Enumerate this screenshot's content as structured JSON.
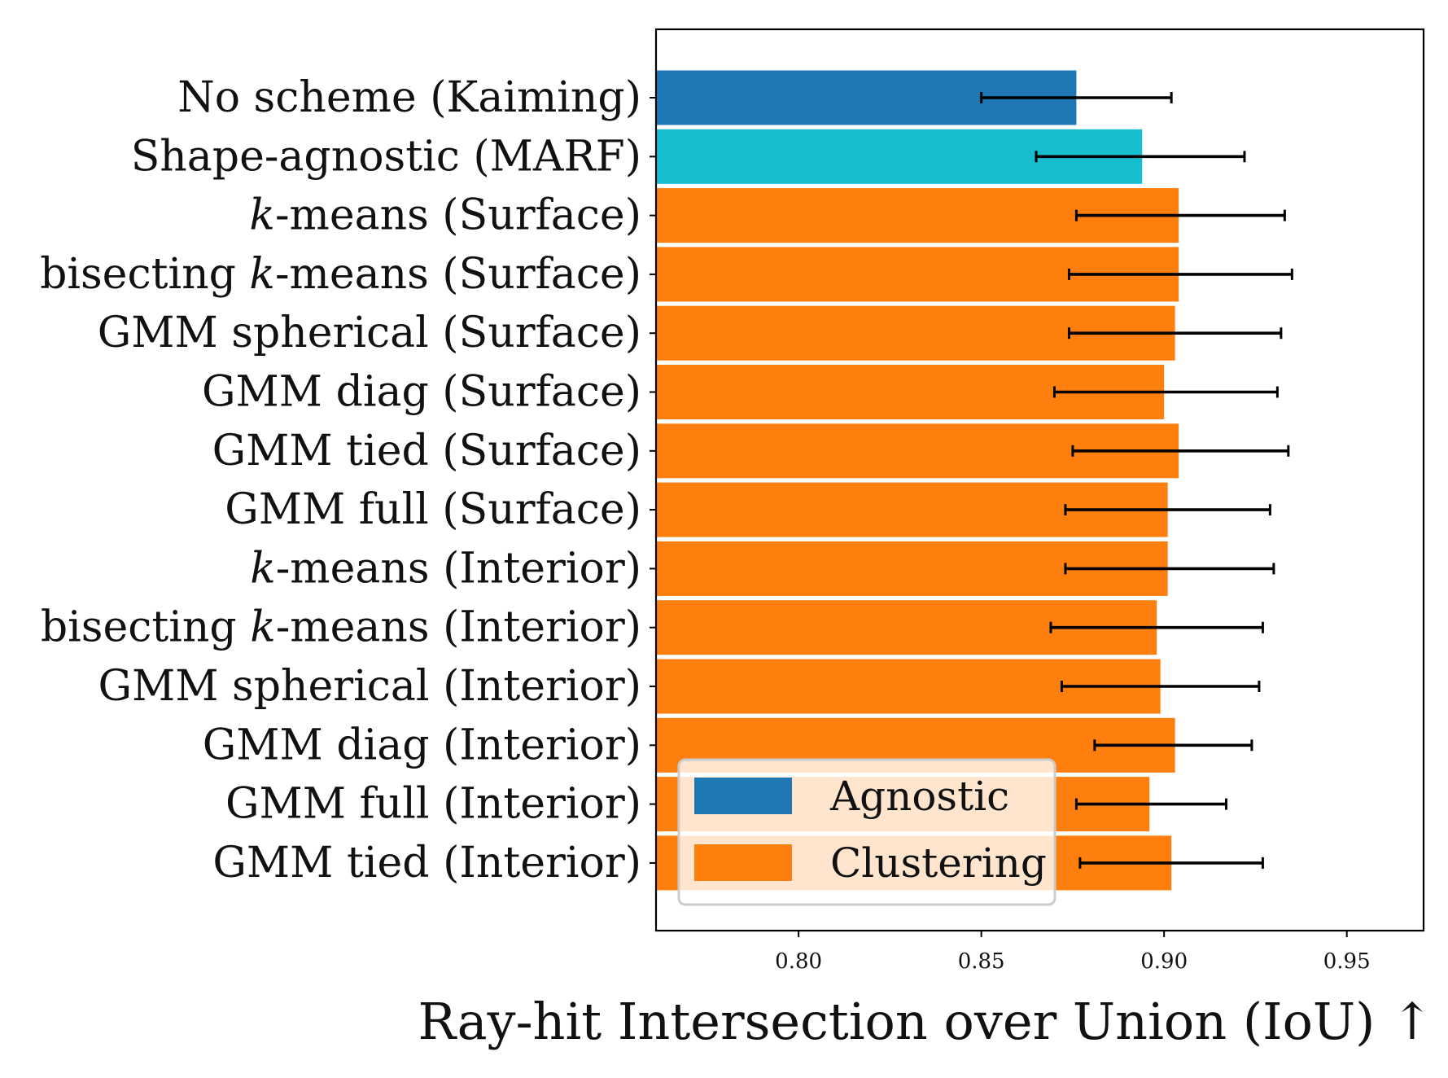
{
  "chart_data": {
    "type": "bar",
    "orientation": "horizontal",
    "title": "",
    "xlabel": "Ray-hit Intersection over Union (IoU) ↑",
    "ylabel": "",
    "xlim": [
      0.761,
      0.971
    ],
    "xticks": [
      0.8,
      0.85,
      0.9,
      0.95
    ],
    "xtick_labels": [
      "0.80",
      "0.85",
      "0.90",
      "0.95"
    ],
    "grid": false,
    "legend_position": "bottom-left",
    "legend": [
      {
        "name": "Agnostic",
        "color": "#1f77b4"
      },
      {
        "name": "Clustering",
        "color": "#ff7f0e"
      }
    ],
    "categories": [
      "No scheme (Kaiming)",
      "Shape-agnostic (MARF)",
      "k-means (Surface)",
      "bisecting k-means (Surface)",
      "GMM spherical (Surface)",
      "GMM diag (Surface)",
      "GMM tied (Surface)",
      "GMM full (Surface)",
      "k-means (Interior)",
      "bisecting k-means (Interior)",
      "GMM spherical (Interior)",
      "GMM diag (Interior)",
      "GMM full (Interior)",
      "GMM tied (Interior)"
    ],
    "category_parts": [
      {
        "pre": "No scheme (Kaiming)",
        "italic": "",
        "post": ""
      },
      {
        "pre": "Shape-agnostic (MARF)",
        "italic": "",
        "post": ""
      },
      {
        "pre": "",
        "italic": "k",
        "post": "-means (Surface)"
      },
      {
        "pre": "bisecting ",
        "italic": "k",
        "post": "-means (Surface)"
      },
      {
        "pre": "GMM spherical (Surface)",
        "italic": "",
        "post": ""
      },
      {
        "pre": "GMM diag (Surface)",
        "italic": "",
        "post": ""
      },
      {
        "pre": "GMM tied (Surface)",
        "italic": "",
        "post": ""
      },
      {
        "pre": "GMM full (Surface)",
        "italic": "",
        "post": ""
      },
      {
        "pre": "",
        "italic": "k",
        "post": "-means (Interior)"
      },
      {
        "pre": "bisecting ",
        "italic": "k",
        "post": "-means (Interior)"
      },
      {
        "pre": "GMM spherical (Interior)",
        "italic": "",
        "post": ""
      },
      {
        "pre": "GMM diag (Interior)",
        "italic": "",
        "post": ""
      },
      {
        "pre": "GMM full (Interior)",
        "italic": "",
        "post": ""
      },
      {
        "pre": "GMM tied (Interior)",
        "italic": "",
        "post": ""
      }
    ],
    "values": [
      0.876,
      0.894,
      0.904,
      0.904,
      0.903,
      0.9,
      0.904,
      0.901,
      0.901,
      0.898,
      0.899,
      0.903,
      0.896,
      0.902
    ],
    "error_low": [
      0.85,
      0.865,
      0.876,
      0.874,
      0.874,
      0.87,
      0.875,
      0.873,
      0.873,
      0.869,
      0.872,
      0.881,
      0.876,
      0.877
    ],
    "error_high": [
      0.902,
      0.922,
      0.933,
      0.935,
      0.932,
      0.931,
      0.934,
      0.929,
      0.93,
      0.927,
      0.926,
      0.924,
      0.917,
      0.927
    ],
    "groups": [
      "Agnostic-dark",
      "Agnostic-light",
      "Clustering",
      "Clustering",
      "Clustering",
      "Clustering",
      "Clustering",
      "Clustering",
      "Clustering",
      "Clustering",
      "Clustering",
      "Clustering",
      "Clustering",
      "Clustering"
    ],
    "colors": [
      "#1f77b4",
      "#17becf",
      "#ff7f0e",
      "#ff7f0e",
      "#ff7f0e",
      "#ff7f0e",
      "#ff7f0e",
      "#ff7f0e",
      "#ff7f0e",
      "#ff7f0e",
      "#ff7f0e",
      "#ff7f0e",
      "#ff7f0e",
      "#ff7f0e"
    ]
  }
}
